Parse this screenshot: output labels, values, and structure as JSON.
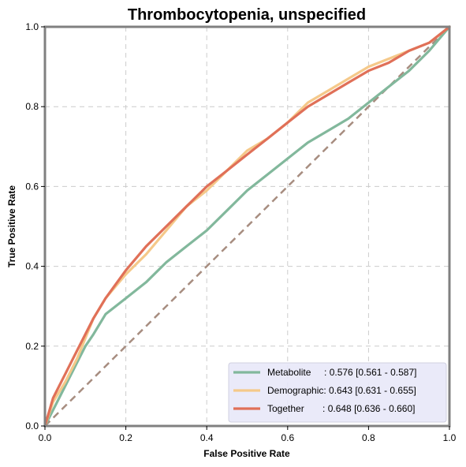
{
  "chart_data": {
    "type": "line",
    "title": "Thrombocytopenia, unspecified",
    "xlabel": "False Positive Rate",
    "ylabel": "True Positive Rate",
    "xlim": [
      0,
      1
    ],
    "ylim": [
      0,
      1
    ],
    "xticks": [
      "0.0",
      "0.2",
      "0.4",
      "0.6",
      "0.8",
      "1.0"
    ],
    "yticks": [
      "0.0",
      "0.2",
      "0.4",
      "0.6",
      "0.8",
      "1.0"
    ],
    "grid": true,
    "legend_position": "lower-right",
    "series": [
      {
        "name": "Metabolite",
        "legend_label": "Metabolite     : 0.576 [0.561 - 0.587]",
        "color": "#82b89c",
        "x": [
          0,
          0.02,
          0.05,
          0.08,
          0.1,
          0.12,
          0.15,
          0.2,
          0.25,
          0.3,
          0.35,
          0.4,
          0.45,
          0.5,
          0.55,
          0.6,
          0.65,
          0.7,
          0.75,
          0.8,
          0.85,
          0.9,
          0.95,
          1.0
        ],
        "y": [
          0,
          0.04,
          0.1,
          0.16,
          0.2,
          0.23,
          0.28,
          0.32,
          0.36,
          0.41,
          0.45,
          0.49,
          0.54,
          0.59,
          0.63,
          0.67,
          0.71,
          0.74,
          0.77,
          0.81,
          0.85,
          0.89,
          0.94,
          1.0
        ]
      },
      {
        "name": "Demographic",
        "legend_label": "Demographic: 0.643 [0.631 - 0.655]",
        "color": "#f5c98a",
        "x": [
          0,
          0.02,
          0.05,
          0.08,
          0.1,
          0.12,
          0.15,
          0.2,
          0.25,
          0.3,
          0.35,
          0.4,
          0.45,
          0.5,
          0.55,
          0.6,
          0.65,
          0.7,
          0.75,
          0.8,
          0.85,
          0.9,
          0.95,
          1.0
        ],
        "y": [
          0,
          0.06,
          0.11,
          0.17,
          0.22,
          0.27,
          0.32,
          0.38,
          0.43,
          0.49,
          0.55,
          0.59,
          0.64,
          0.69,
          0.72,
          0.76,
          0.81,
          0.84,
          0.87,
          0.9,
          0.92,
          0.94,
          0.96,
          1.0
        ]
      },
      {
        "name": "Together",
        "legend_label": "Together       : 0.648 [0.636 - 0.660]",
        "color": "#e07058",
        "x": [
          0,
          0.02,
          0.05,
          0.08,
          0.1,
          0.12,
          0.15,
          0.2,
          0.25,
          0.3,
          0.35,
          0.4,
          0.45,
          0.5,
          0.55,
          0.6,
          0.65,
          0.7,
          0.75,
          0.8,
          0.85,
          0.9,
          0.95,
          1.0
        ],
        "y": [
          0,
          0.07,
          0.13,
          0.19,
          0.23,
          0.27,
          0.32,
          0.39,
          0.45,
          0.5,
          0.55,
          0.6,
          0.64,
          0.68,
          0.72,
          0.76,
          0.8,
          0.83,
          0.86,
          0.89,
          0.91,
          0.94,
          0.96,
          1.0
        ]
      }
    ],
    "reference_line": {
      "color": "#a78d80",
      "x": [
        0,
        1
      ],
      "y": [
        0,
        1
      ]
    }
  }
}
